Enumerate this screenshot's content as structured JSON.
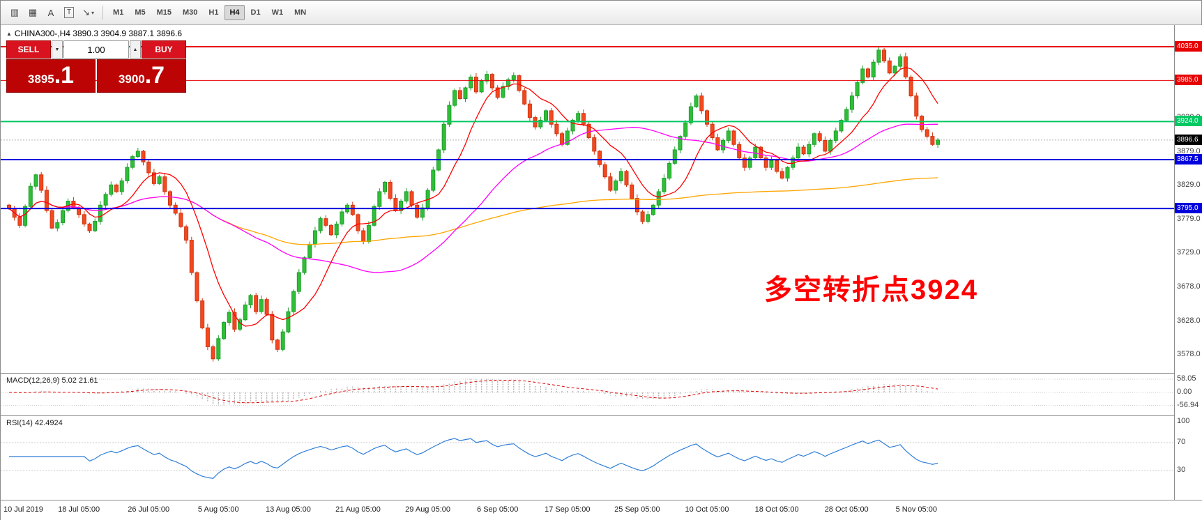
{
  "toolbar": {
    "icons": [
      {
        "name": "chart-window-icon",
        "glyph": "▥"
      },
      {
        "name": "data-grid-icon",
        "glyph": "▦"
      },
      {
        "name": "label-tool-icon",
        "glyph": "A"
      },
      {
        "name": "text-tool-icon",
        "glyph": "T",
        "boxed": true
      },
      {
        "name": "cursor-tool-icon",
        "glyph": "↘",
        "caret": true
      }
    ],
    "dropdown_caret": "▾",
    "timeframes": [
      "M1",
      "M5",
      "M15",
      "M30",
      "H1",
      "H4",
      "D1",
      "W1",
      "MN"
    ],
    "active_timeframe": "H4"
  },
  "header": {
    "collapse_icon": "▲",
    "text": "CHINA300-,H4  3890.3 3904.9 3887.1 3896.6"
  },
  "trade": {
    "sell_label": "SELL",
    "buy_label": "BUY",
    "volume": "1.00",
    "spin_down": "▼",
    "spin_up": "▲",
    "sell_price": {
      "small": "3895",
      "big": ".1"
    },
    "buy_price": {
      "small": "3900",
      "big": ".7"
    }
  },
  "annotation": {
    "text": "多空转折点3924",
    "color": "#ff0000"
  },
  "indicators": {
    "macd": {
      "header": "MACD(12,26,9) 5.02 21.61"
    },
    "rsi": {
      "header": "RSI(14) 42.4924"
    }
  },
  "colors": {
    "up": "#1f9e2c",
    "up_fill": "#2fbf37",
    "down": "#cf3410",
    "down_fill": "#f4481f",
    "macd_hist": "#b5b5b5",
    "macd_signal": "#e00000",
    "rsi": "#2f7ed8",
    "bid_badge": "#000000"
  },
  "chart_data": {
    "type": "candlestick",
    "symbol": "CHINA300-",
    "timeframe": "H4",
    "ohlc_display": {
      "open": 3890.3,
      "high": 3904.9,
      "low": 3887.1,
      "close": 3896.6
    },
    "bid": {
      "price": 3896.6,
      "label": "3896.6"
    },
    "closes": [
      3795,
      3782,
      3770,
      3798,
      3828,
      3845,
      3822,
      3792,
      3766,
      3774,
      3792,
      3806,
      3796,
      3786,
      3772,
      3762,
      3776,
      3800,
      3816,
      3830,
      3820,
      3836,
      3856,
      3872,
      3880,
      3864,
      3848,
      3832,
      3842,
      3820,
      3800,
      3788,
      3768,
      3748,
      3700,
      3658,
      3618,
      3590,
      3572,
      3602,
      3626,
      3641,
      3616,
      3630,
      3652,
      3666,
      3642,
      3660,
      3638,
      3600,
      3586,
      3612,
      3642,
      3672,
      3700,
      3722,
      3742,
      3762,
      3780,
      3770,
      3756,
      3772,
      3790,
      3800,
      3786,
      3762,
      3746,
      3770,
      3798,
      3820,
      3834,
      3810,
      3792,
      3806,
      3820,
      3800,
      3782,
      3796,
      3822,
      3852,
      3882,
      3920,
      3948,
      3970,
      3958,
      3974,
      3990,
      3968,
      3984,
      3994,
      3974,
      3960,
      3976,
      3986,
      3992,
      3970,
      3950,
      3930,
      3916,
      3926,
      3940,
      3920,
      3906,
      3890,
      3910,
      3926,
      3936,
      3920,
      3900,
      3880,
      3860,
      3842,
      3822,
      3836,
      3850,
      3830,
      3810,
      3790,
      3776,
      3786,
      3800,
      3820,
      3840,
      3862,
      3882,
      3902,
      3922,
      3946,
      3962,
      3940,
      3920,
      3900,
      3882,
      3896,
      3910,
      3890,
      3870,
      3856,
      3870,
      3886,
      3870,
      3856,
      3866,
      3850,
      3840,
      3856,
      3870,
      3886,
      3876,
      3890,
      3906,
      3896,
      3880,
      3896,
      3910,
      3926,
      3942,
      3962,
      3982,
      4002,
      3990,
      4012,
      4030,
      4014,
      3996,
      4006,
      4020,
      3990,
      3962,
      3932,
      3912,
      3902,
      3890,
      3896.6
    ],
    "moving_averages": [
      {
        "name": "ma-fast",
        "period": 10,
        "color": "#ff0000"
      },
      {
        "name": "ma-medium",
        "period": 40,
        "color": "#ff00ff"
      },
      {
        "name": "ma-slow",
        "period": 300,
        "color": "#ffa500"
      }
    ],
    "hlines": [
      {
        "price": 4035.0,
        "label": "4035.0",
        "color": "#e60000",
        "width": 2
      },
      {
        "price": 3985.0,
        "label": "3985.0",
        "color": "#e60000",
        "width": 1
      },
      {
        "price": 3924.0,
        "label": "3924.0",
        "color": "#00c862",
        "width": 2
      },
      {
        "price": 3867.5,
        "label": "3867.5",
        "color": "#0000dd",
        "width": 2
      },
      {
        "price": 3795.0,
        "label": "3795.0",
        "color": "#0000dd",
        "width": 2
      }
    ],
    "y_axis_ticks": [
      {
        "label": "3980.0",
        "price": 3980
      },
      {
        "label": "3930.0",
        "price": 3930
      },
      {
        "label": "3879.0",
        "price": 3879
      },
      {
        "label": "3829.0",
        "price": 3829
      },
      {
        "label": "3779.0",
        "price": 3779
      },
      {
        "label": "3729.0",
        "price": 3729
      },
      {
        "label": "3678.0",
        "price": 3678
      },
      {
        "label": "3628.0",
        "price": 3628
      },
      {
        "label": "3578.0",
        "price": 3578
      }
    ],
    "x_axis_labels": [
      "10 Jul 2019",
      "18 Jul 05:00",
      "26 Jul 05:00",
      "5 Aug 05:00",
      "13 Aug 05:00",
      "21 Aug 05:00",
      "29 Aug 05:00",
      "6 Sep 05:00",
      "17 Sep 05:00",
      "25 Sep 05:00",
      "10 Oct 05:00",
      "18 Oct 05:00",
      "28 Oct 05:00",
      "5 Nov 05:00"
    ],
    "macd": {
      "params": [
        12,
        26,
        9
      ],
      "values": [
        5.02,
        21.61
      ],
      "axis_values": [
        58.05,
        0,
        -56.94
      ]
    },
    "rsi": {
      "period": 14,
      "value": 42.4924,
      "axis_values": [
        100,
        70,
        30
      ],
      "levels": [
        70,
        30
      ]
    }
  }
}
